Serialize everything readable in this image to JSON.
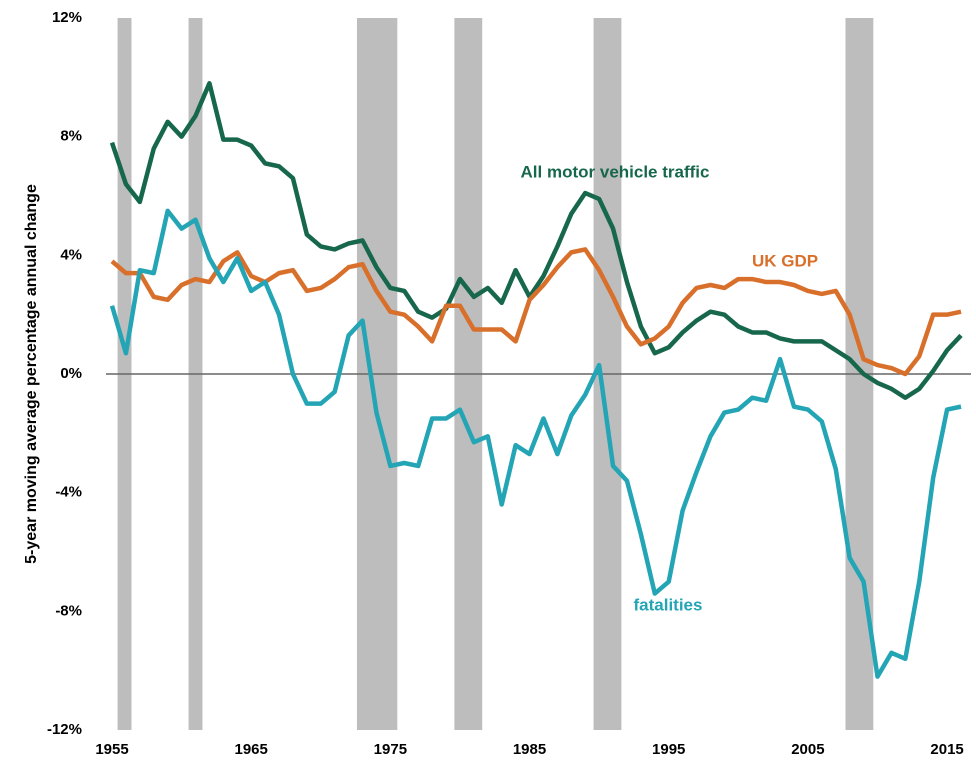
{
  "chart_data": {
    "type": "line",
    "y_label": "5-year moving average percentage annual change",
    "xlim": [
      1955,
      2016
    ],
    "xticks": [
      1955,
      1965,
      1975,
      1985,
      1995,
      2005,
      2015
    ],
    "ylim": [
      -12,
      12
    ],
    "yticks": [
      {
        "value": -12,
        "label": "-12%"
      },
      {
        "value": -8,
        "label": "-8%"
      },
      {
        "value": -4,
        "label": "-4%"
      },
      {
        "value": 0,
        "label": "0%"
      },
      {
        "value": 4,
        "label": "4%"
      },
      {
        "value": 8,
        "label": "8%"
      },
      {
        "value": 12,
        "label": "12%"
      }
    ],
    "recession_color": "#bdbdbd",
    "recessions": [
      [
        1955.4,
        1956.4
      ],
      [
        1960.5,
        1961.5
      ],
      [
        1972.6,
        1975.5
      ],
      [
        1979.6,
        1981.6
      ],
      [
        1989.6,
        1991.6
      ],
      [
        2007.7,
        2009.7
      ]
    ],
    "x": [
      1955,
      1956,
      1957,
      1958,
      1959,
      1960,
      1961,
      1962,
      1963,
      1964,
      1965,
      1966,
      1967,
      1968,
      1969,
      1970,
      1971,
      1972,
      1973,
      1974,
      1975,
      1976,
      1977,
      1978,
      1979,
      1980,
      1981,
      1982,
      1983,
      1984,
      1985,
      1986,
      1987,
      1988,
      1989,
      1990,
      1991,
      1992,
      1993,
      1994,
      1995,
      1996,
      1997,
      1998,
      1999,
      2000,
      2001,
      2002,
      2003,
      2004,
      2005,
      2006,
      2007,
      2008,
      2009,
      2010,
      2011,
      2012,
      2013,
      2014,
      2015,
      2016
    ],
    "series": [
      {
        "name": "All motor vehicle traffic",
        "color": "#17674d",
        "values": [
          7.8,
          6.4,
          5.8,
          7.6,
          8.5,
          8.0,
          8.7,
          9.8,
          7.9,
          7.9,
          7.7,
          7.1,
          7.0,
          6.6,
          4.7,
          4.3,
          4.2,
          4.4,
          4.5,
          3.6,
          2.9,
          2.8,
          2.1,
          1.9,
          2.2,
          3.2,
          2.6,
          2.9,
          2.4,
          3.5,
          2.6,
          3.3,
          4.3,
          5.4,
          6.1,
          5.9,
          4.9,
          3.1,
          1.6,
          0.7,
          0.9,
          1.4,
          1.8,
          2.1,
          2.0,
          1.6,
          1.4,
          1.4,
          1.2,
          1.1,
          1.1,
          1.1,
          0.8,
          0.5,
          0.0,
          -0.3,
          -0.5,
          -0.8,
          -0.5,
          0.1,
          0.8,
          1.3
        ]
      },
      {
        "name": "UK GDP",
        "color": "#d8702c",
        "values": [
          3.8,
          3.4,
          3.4,
          2.6,
          2.5,
          3.0,
          3.2,
          3.1,
          3.8,
          4.1,
          3.3,
          3.1,
          3.4,
          3.5,
          2.8,
          2.9,
          3.2,
          3.6,
          3.7,
          2.8,
          2.1,
          2.0,
          1.6,
          1.1,
          2.3,
          2.3,
          1.5,
          1.5,
          1.5,
          1.1,
          2.5,
          3.0,
          3.6,
          4.1,
          4.2,
          3.5,
          2.6,
          1.6,
          1.0,
          1.2,
          1.6,
          2.4,
          2.9,
          3.0,
          2.9,
          3.2,
          3.2,
          3.1,
          3.1,
          3.0,
          2.8,
          2.7,
          2.8,
          2.0,
          0.5,
          0.3,
          0.2,
          0.0,
          0.6,
          2.0,
          2.0,
          2.1
        ]
      },
      {
        "name": "fatalities",
        "color": "#24a5b5",
        "values": [
          2.3,
          0.7,
          3.5,
          3.4,
          5.5,
          4.9,
          5.2,
          3.9,
          3.1,
          3.9,
          2.8,
          3.1,
          2.0,
          0.0,
          -1.0,
          -1.0,
          -0.6,
          1.3,
          1.8,
          -1.3,
          -3.1,
          -3.0,
          -3.1,
          -1.5,
          -1.5,
          -1.2,
          -2.3,
          -2.1,
          -4.4,
          -2.4,
          -2.7,
          -1.5,
          -2.7,
          -1.4,
          -0.7,
          0.3,
          -3.1,
          -3.6,
          -5.4,
          -7.4,
          -7.0,
          -4.6,
          -3.3,
          -2.1,
          -1.3,
          -1.2,
          -0.8,
          -0.9,
          0.5,
          -1.1,
          -1.2,
          -1.6,
          -3.2,
          -6.2,
          -7.0,
          -10.2,
          -9.4,
          -9.6,
          -7.0,
          -3.5,
          -1.2,
          -1.1
        ]
      }
    ]
  }
}
